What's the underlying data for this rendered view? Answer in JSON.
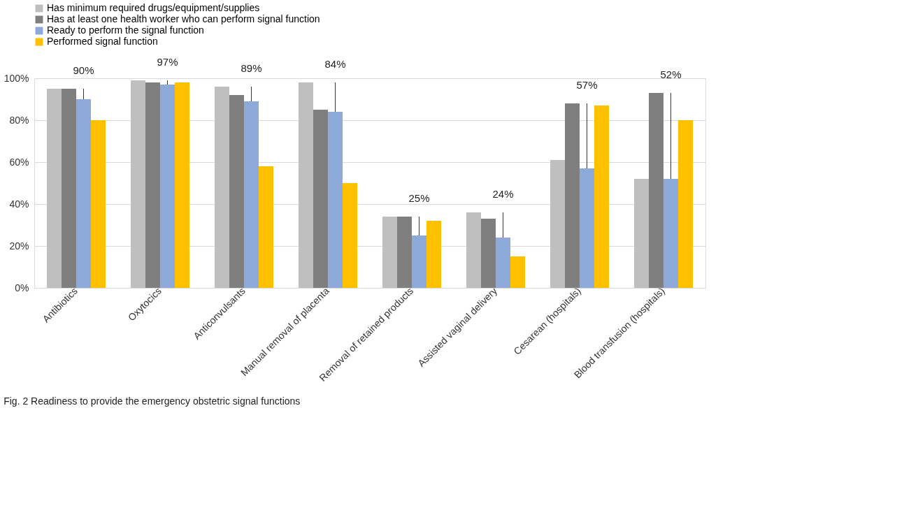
{
  "chart_data": {
    "type": "bar",
    "categories": [
      "Antibiotics",
      "Oxytocics",
      "Anticonvulsants",
      "Manual removal of placenta",
      "Removal of retained products",
      "Assisted vaginal delivery",
      "Cesarean (hospitals)",
      "Blood transfusion (hospitals)"
    ],
    "series": [
      {
        "name": "Has minimum required drugs/equipment/supplies",
        "color": "#bfbfbf",
        "values": [
          95,
          99,
          96,
          98,
          34,
          36,
          61,
          52
        ]
      },
      {
        "name": "Has at least one health worker who can perform signal function",
        "color": "#7f7f7f",
        "values": [
          95,
          98,
          92,
          85,
          34,
          33,
          88,
          93
        ]
      },
      {
        "name": "Ready to perform the signal function",
        "color": "#8eaadb",
        "values": [
          90,
          97,
          89,
          84,
          25,
          24,
          57,
          52
        ],
        "value_labels": [
          "90%",
          "97%",
          "89%",
          "84%",
          "25%",
          "24%",
          "57%",
          "52%"
        ]
      },
      {
        "name": "Performed signal function",
        "color": "#ffc000",
        "values": [
          80,
          98,
          58,
          50,
          32,
          15,
          87,
          80
        ]
      }
    ],
    "ylim": [
      0,
      100
    ],
    "yticks": [
      {
        "value": 0,
        "label": "0%"
      },
      {
        "value": 20,
        "label": "20%"
      },
      {
        "value": 40,
        "label": "40%"
      },
      {
        "value": 60,
        "label": "60%"
      },
      {
        "value": 80,
        "label": "80%"
      },
      {
        "value": 100,
        "label": "100%"
      }
    ],
    "grid": "y",
    "legend": "top",
    "annotations": [
      "Fig. 2 Readiness to provide the emergency obstetric signal functions"
    ]
  }
}
